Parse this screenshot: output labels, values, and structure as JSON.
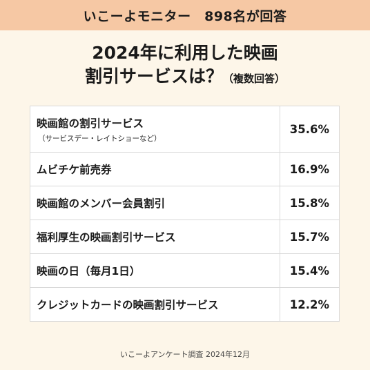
{
  "header": {
    "text": "いこーよモニター　898名が回答"
  },
  "title": {
    "line1": "2024年に利用した映画",
    "line2": "割引サービスは？",
    "note": "（複数回答）"
  },
  "rows": [
    {
      "label": "映画館の割引サービス",
      "sub": "（サービスデー・レイトショーなど）",
      "value": "35.6%"
    },
    {
      "label": "ムビチケ前売券",
      "value": "16.9%"
    },
    {
      "label": "映画館のメンバー会員割引",
      "value": "15.8%"
    },
    {
      "label": "福利厚生の映画割引サービス",
      "value": "15.7%"
    },
    {
      "label": "映画の日（毎月1日）",
      "value": "15.4%"
    },
    {
      "label": "クレジットカードの映画割引サービス",
      "value": "12.2%"
    }
  ],
  "footer": {
    "text": "いこーよアンケート調査 2024年12月"
  }
}
